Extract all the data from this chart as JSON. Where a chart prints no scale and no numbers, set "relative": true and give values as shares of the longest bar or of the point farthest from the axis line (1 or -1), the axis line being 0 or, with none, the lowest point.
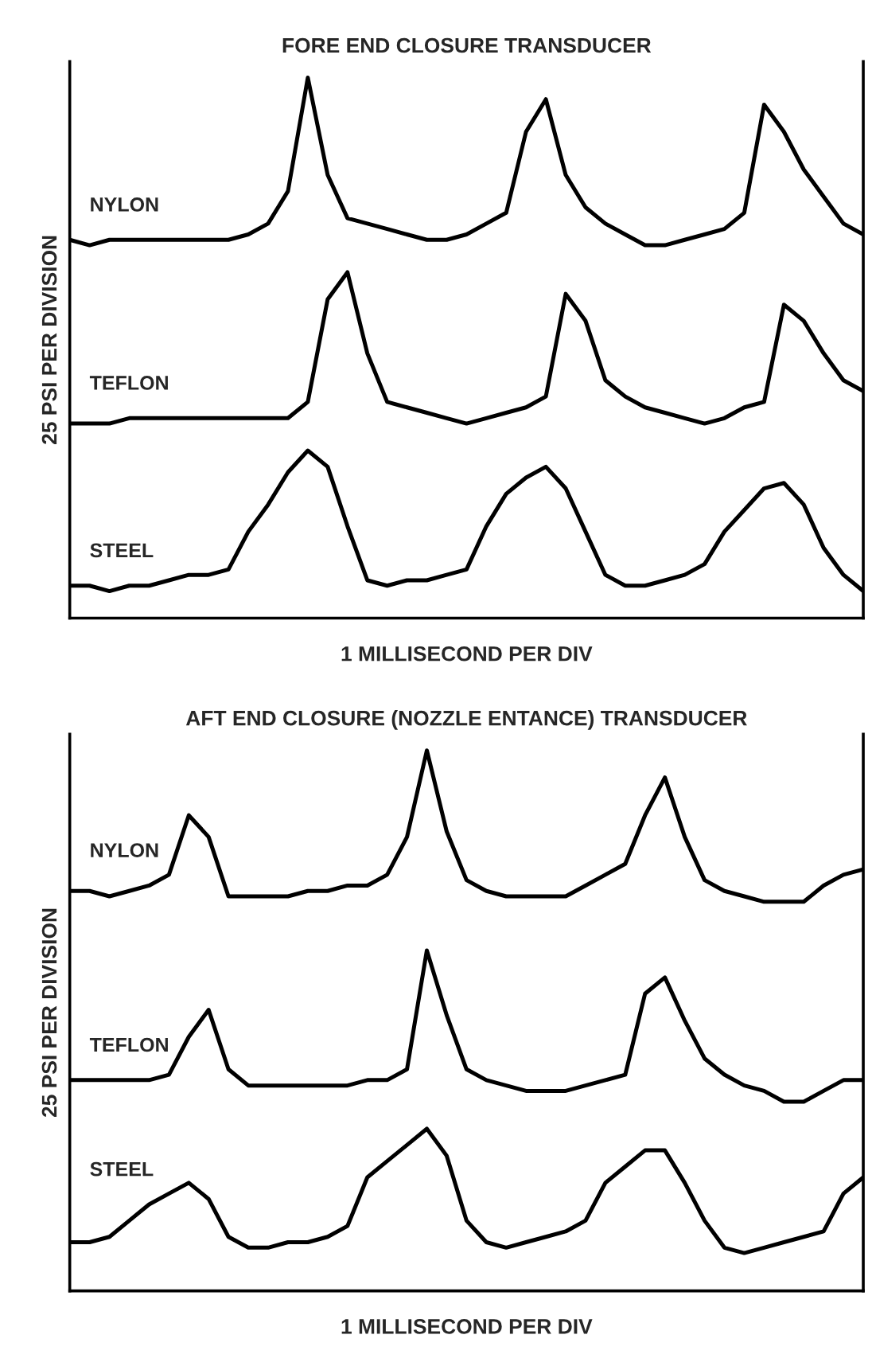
{
  "chart_data": [
    {
      "type": "line",
      "title": "FORE END CLOSURE TRANSDUCER",
      "xlabel": "1 MILLISECOND PER DIV",
      "ylabel": "25 PSI PER DIVISION",
      "relative": true,
      "legend": false,
      "grid": false,
      "categories": [
        null,
        null,
        null,
        null,
        null,
        null,
        null,
        null,
        null,
        null,
        null,
        null,
        null,
        null,
        null,
        null,
        null,
        null,
        null,
        null,
        null,
        null,
        null,
        null,
        null,
        null,
        null,
        null,
        null,
        null,
        null,
        null,
        null,
        null,
        null,
        null,
        null,
        null,
        null,
        null,
        null
      ],
      "series": [
        {
          "name": "NYLON",
          "color": "#000000",
          "values": [
            0.7,
            0.69,
            0.7,
            0.7,
            0.7,
            0.7,
            0.7,
            0.7,
            0.7,
            0.71,
            0.73,
            0.79,
            1.0,
            0.82,
            0.74,
            0.73,
            0.72,
            0.71,
            0.7,
            0.7,
            0.71,
            0.73,
            0.75,
            0.9,
            0.96,
            0.82,
            0.76,
            0.73,
            0.71,
            0.69,
            0.69,
            0.7,
            0.71,
            0.72,
            0.75,
            0.95,
            0.9,
            0.83,
            0.78,
            0.73,
            0.71
          ]
        },
        {
          "name": "TEFLON",
          "color": "#000000",
          "values": [
            0.36,
            0.36,
            0.36,
            0.37,
            0.37,
            0.37,
            0.37,
            0.37,
            0.37,
            0.37,
            0.37,
            0.37,
            0.4,
            0.59,
            0.64,
            0.49,
            0.4,
            0.39,
            0.38,
            0.37,
            0.36,
            0.37,
            0.38,
            0.39,
            0.41,
            0.6,
            0.55,
            0.44,
            0.41,
            0.39,
            0.38,
            0.37,
            0.36,
            0.37,
            0.39,
            0.4,
            0.58,
            0.55,
            0.49,
            0.44,
            0.42
          ]
        },
        {
          "name": "STEEL",
          "color": "#000000",
          "values": [
            0.06,
            0.06,
            0.05,
            0.06,
            0.06,
            0.07,
            0.08,
            0.08,
            0.09,
            0.16,
            0.21,
            0.27,
            0.31,
            0.28,
            0.17,
            0.07,
            0.06,
            0.07,
            0.07,
            0.08,
            0.09,
            0.17,
            0.23,
            0.26,
            0.28,
            0.24,
            0.16,
            0.08,
            0.06,
            0.06,
            0.07,
            0.08,
            0.1,
            0.16,
            0.2,
            0.24,
            0.25,
            0.21,
            0.13,
            0.08,
            0.05
          ]
        }
      ]
    },
    {
      "type": "line",
      "title": "AFT END CLOSURE (NOZZLE ENTANCE) TRANSDUCER",
      "xlabel": "1 MILLISECOND PER DIV",
      "ylabel": "25 PSI PER DIVISION",
      "relative": true,
      "legend": false,
      "grid": false,
      "categories": [
        null,
        null,
        null,
        null,
        null,
        null,
        null,
        null,
        null,
        null,
        null,
        null,
        null,
        null,
        null,
        null,
        null,
        null,
        null,
        null,
        null,
        null,
        null,
        null,
        null,
        null,
        null,
        null,
        null,
        null,
        null,
        null,
        null,
        null,
        null,
        null,
        null,
        null,
        null,
        null,
        null
      ],
      "series": [
        {
          "name": "NYLON",
          "color": "#000000",
          "values": [
            0.74,
            0.74,
            0.73,
            0.74,
            0.75,
            0.77,
            0.88,
            0.84,
            0.73,
            0.73,
            0.73,
            0.73,
            0.74,
            0.74,
            0.75,
            0.75,
            0.77,
            0.84,
            1.0,
            0.85,
            0.76,
            0.74,
            0.73,
            0.73,
            0.73,
            0.73,
            0.75,
            0.77,
            0.79,
            0.88,
            0.95,
            0.84,
            0.76,
            0.74,
            0.73,
            0.72,
            0.72,
            0.72,
            0.75,
            0.77,
            0.78
          ]
        },
        {
          "name": "TEFLON",
          "color": "#000000",
          "values": [
            0.39,
            0.39,
            0.39,
            0.39,
            0.39,
            0.4,
            0.47,
            0.52,
            0.41,
            0.38,
            0.38,
            0.38,
            0.38,
            0.38,
            0.38,
            0.39,
            0.39,
            0.41,
            0.63,
            0.51,
            0.41,
            0.39,
            0.38,
            0.37,
            0.37,
            0.37,
            0.38,
            0.39,
            0.4,
            0.55,
            0.58,
            0.5,
            0.43,
            0.4,
            0.38,
            0.37,
            0.35,
            0.35,
            0.37,
            0.39,
            0.39
          ]
        },
        {
          "name": "STEEL",
          "color": "#000000",
          "values": [
            0.09,
            0.09,
            0.1,
            0.13,
            0.16,
            0.18,
            0.2,
            0.17,
            0.1,
            0.08,
            0.08,
            0.09,
            0.09,
            0.1,
            0.12,
            0.21,
            0.24,
            0.27,
            0.3,
            0.25,
            0.13,
            0.09,
            0.08,
            0.09,
            0.1,
            0.11,
            0.13,
            0.2,
            0.23,
            0.26,
            0.26,
            0.2,
            0.13,
            0.08,
            0.07,
            0.08,
            0.09,
            0.1,
            0.11,
            0.18,
            0.21
          ]
        }
      ]
    }
  ]
}
